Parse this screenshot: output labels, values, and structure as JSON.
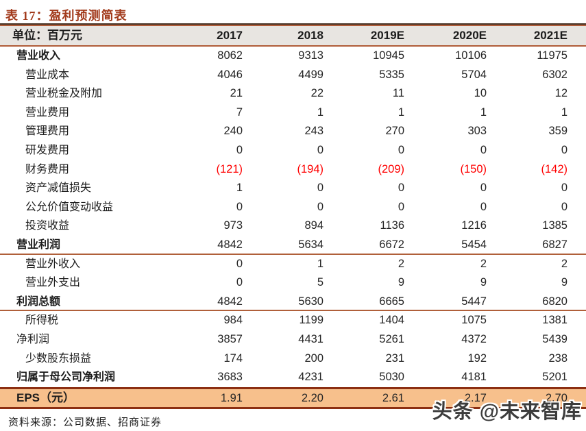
{
  "title": "表 17：盈利预测简表",
  "table": {
    "unit_label": "单位：百万元",
    "columns": [
      "2017",
      "2018",
      "2019E",
      "2020E",
      "2021E"
    ],
    "rows": [
      {
        "label": "营业收入",
        "bold": true,
        "indent": false,
        "divider": false,
        "values": [
          "8062",
          "9313",
          "10945",
          "10106",
          "11975"
        ]
      },
      {
        "label": "营业成本",
        "bold": false,
        "indent": true,
        "divider": false,
        "values": [
          "4046",
          "4499",
          "5335",
          "5704",
          "6302"
        ]
      },
      {
        "label": "营业税金及附加",
        "bold": false,
        "indent": true,
        "divider": false,
        "values": [
          "21",
          "22",
          "11",
          "10",
          "12"
        ]
      },
      {
        "label": "营业费用",
        "bold": false,
        "indent": true,
        "divider": false,
        "values": [
          "7",
          "1",
          "1",
          "1",
          "1"
        ]
      },
      {
        "label": "管理费用",
        "bold": false,
        "indent": true,
        "divider": false,
        "values": [
          "240",
          "243",
          "270",
          "303",
          "359"
        ]
      },
      {
        "label": "研发费用",
        "bold": false,
        "indent": true,
        "divider": false,
        "values": [
          "0",
          "0",
          "0",
          "0",
          "0"
        ]
      },
      {
        "label": "财务费用",
        "bold": false,
        "indent": true,
        "divider": false,
        "values": [
          "(121)",
          "(194)",
          "(209)",
          "(150)",
          "(142)"
        ]
      },
      {
        "label": "资产减值损失",
        "bold": false,
        "indent": true,
        "divider": false,
        "values": [
          "1",
          "0",
          "0",
          "0",
          "0"
        ]
      },
      {
        "label": "公允价值变动收益",
        "bold": false,
        "indent": true,
        "divider": false,
        "values": [
          "0",
          "0",
          "0",
          "0",
          "0"
        ]
      },
      {
        "label": "投资收益",
        "bold": false,
        "indent": true,
        "divider": false,
        "values": [
          "973",
          "894",
          "1136",
          "1216",
          "1385"
        ]
      },
      {
        "label": "营业利润",
        "bold": true,
        "indent": false,
        "divider": true,
        "values": [
          "4842",
          "5634",
          "6672",
          "5454",
          "6827"
        ]
      },
      {
        "label": "营业外收入",
        "bold": false,
        "indent": true,
        "divider": false,
        "values": [
          "0",
          "1",
          "2",
          "2",
          "2"
        ]
      },
      {
        "label": "营业外支出",
        "bold": false,
        "indent": true,
        "divider": false,
        "values": [
          "0",
          "5",
          "9",
          "9",
          "9"
        ]
      },
      {
        "label": "利润总额",
        "bold": true,
        "indent": false,
        "divider": true,
        "values": [
          "4842",
          "5630",
          "6665",
          "5447",
          "6820"
        ]
      },
      {
        "label": "所得税",
        "bold": false,
        "indent": true,
        "divider": false,
        "values": [
          "984",
          "1199",
          "1404",
          "1075",
          "1381"
        ]
      },
      {
        "label": "净利润",
        "bold": false,
        "indent": false,
        "divider": false,
        "values": [
          "3857",
          "4431",
          "5261",
          "4372",
          "5439"
        ]
      },
      {
        "label": "少数股东损益",
        "bold": false,
        "indent": true,
        "divider": false,
        "values": [
          "174",
          "200",
          "231",
          "192",
          "238"
        ]
      },
      {
        "label": "归属于母公司净利润",
        "bold": true,
        "indent": false,
        "divider": false,
        "values": [
          "3683",
          "4231",
          "5030",
          "4181",
          "5201"
        ]
      }
    ],
    "eps_row": {
      "label": "EPS（元）",
      "values": [
        "1.91",
        "2.20",
        "2.61",
        "2.17",
        "2.70"
      ]
    }
  },
  "source": "资料来源：公司数据、招商证券",
  "watermark": "头条 @未来智库",
  "colors": {
    "title_text": "#a23b1c",
    "title_underline": "#463427",
    "header_background": "#e8e5e1",
    "header_border": "#b05c38",
    "section_divider": "#b0603a",
    "eps_background": "#f7c08c",
    "eps_border": "#8c2f12",
    "negative_value": "#ff0000",
    "watermark_text": "#3c3c3c"
  }
}
